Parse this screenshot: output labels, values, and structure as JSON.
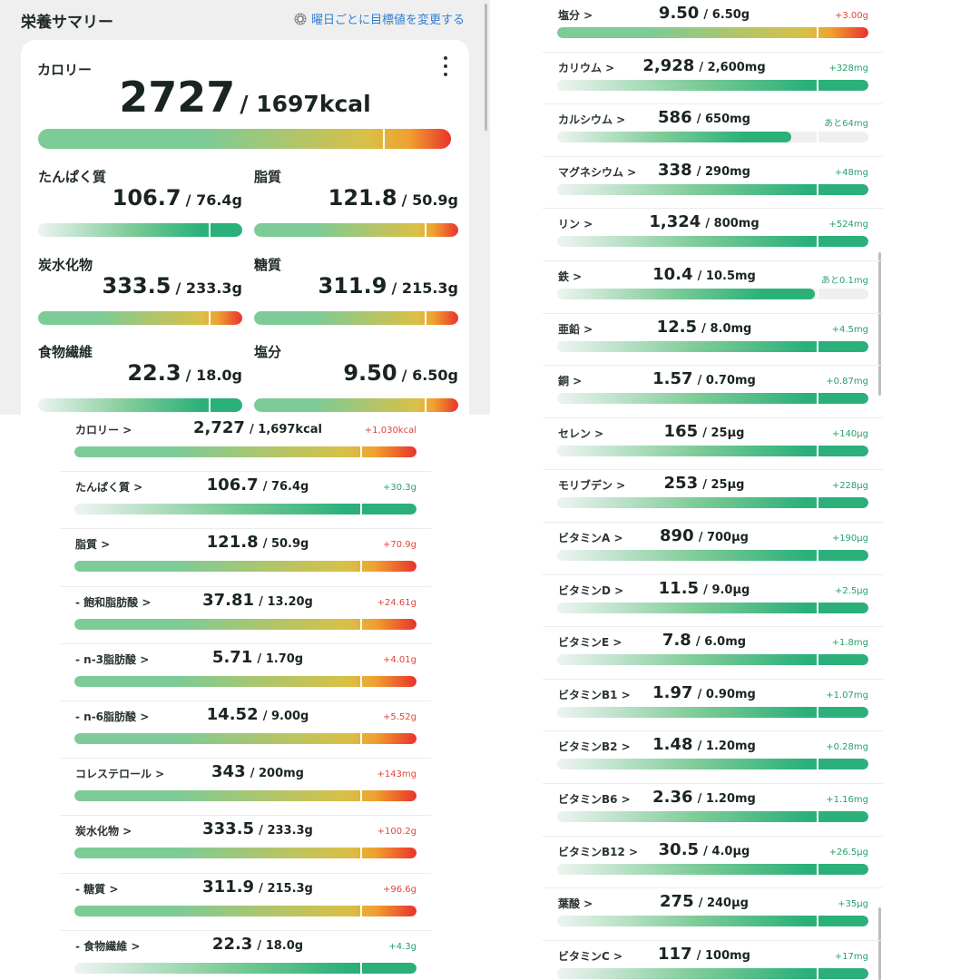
{
  "colors": {
    "green": "#2bb07a",
    "light_green": "#7dcb97",
    "yellow": "#d9c046",
    "orange": "#f0a02f",
    "red": "#e8332b",
    "over_text": "#e0443a",
    "ok_text": "#27a06a",
    "link_blue": "#2f7fd4"
  },
  "summary": {
    "title": "栄養サマリー",
    "link": "曜日ごとに目標値を変更する",
    "link_icon": "gear-icon",
    "menu_icon": "more-vertical-icon",
    "calorie": {
      "label": "カロリー",
      "value": "2727",
      "goal": "/ 1697kcal",
      "ratio": 1.607
    },
    "nutrients": [
      {
        "label": "たんぱく質",
        "value": "106.7",
        "goal": "/ 76.4g",
        "ratio": 1.397
      },
      {
        "label": "脂質",
        "value": "121.8",
        "goal": "/ 50.9g",
        "ratio": 2.393
      },
      {
        "label": "炭水化物",
        "value": "333.5",
        "goal": "/ 233.3g",
        "ratio": 1.43
      },
      {
        "label": "糖質",
        "value": "311.9",
        "goal": "/ 215.3g",
        "ratio": 1.449
      },
      {
        "label": "食物繊維",
        "value": "22.3",
        "goal": "/ 18.0g",
        "ratio": 1.239
      },
      {
        "label": "塩分",
        "value": "9.50",
        "goal": "/ 6.50g",
        "ratio": 1.462
      }
    ]
  },
  "list_left": [
    {
      "name": "カロリー >",
      "value": "2,727",
      "goal": "/ 1,697kcal",
      "diff": "+1,030kcal",
      "status": "over",
      "ratio": 1.607
    },
    {
      "name": "たんぱく質 >",
      "value": "106.7",
      "goal": "/ 76.4g",
      "diff": "+30.3g",
      "status": "ok",
      "ratio": 1.397
    },
    {
      "name": "脂質 >",
      "value": "121.8",
      "goal": "/ 50.9g",
      "diff": "+70.9g",
      "status": "over",
      "ratio": 2.393
    },
    {
      "name": "- 飽和脂肪酸 >",
      "value": "37.81",
      "goal": "/ 13.20g",
      "diff": "+24.61g",
      "status": "over",
      "ratio": 2.864
    },
    {
      "name": "- n-3脂肪酸 >",
      "value": "5.71",
      "goal": "/ 1.70g",
      "diff": "+4.01g",
      "status": "over",
      "ratio": 3.359
    },
    {
      "name": "- n-6脂肪酸 >",
      "value": "14.52",
      "goal": "/ 9.00g",
      "diff": "+5.52g",
      "status": "over",
      "ratio": 1.613
    },
    {
      "name": "コレステロール >",
      "value": "343",
      "goal": "/ 200mg",
      "diff": "+143mg",
      "status": "over",
      "ratio": 1.715
    },
    {
      "name": "炭水化物 >",
      "value": "333.5",
      "goal": "/ 233.3g",
      "diff": "+100.2g",
      "status": "over",
      "ratio": 1.43
    },
    {
      "name": "- 糖質 >",
      "value": "311.9",
      "goal": "/ 215.3g",
      "diff": "+96.6g",
      "status": "over",
      "ratio": 1.449
    },
    {
      "name": "- 食物繊維 >",
      "value": "22.3",
      "goal": "/ 18.0g",
      "diff": "+4.3g",
      "status": "ok",
      "ratio": 1.239
    }
  ],
  "list_right": [
    {
      "name": "塩分 >",
      "value": "9.50",
      "goal": "/ 6.50g",
      "diff": "+3.00g",
      "status": "over",
      "ratio": 1.462
    },
    {
      "name": "カリウム >",
      "value": "2,928",
      "goal": "/ 2,600mg",
      "diff": "+328mg",
      "status": "ok",
      "ratio": 1.126
    },
    {
      "name": "カルシウム >",
      "value": "586",
      "goal": "/ 650mg",
      "diff": "あと64mg",
      "status": "short",
      "ratio": 0.902
    },
    {
      "name": "マグネシウム >",
      "value": "338",
      "goal": "/ 290mg",
      "diff": "+48mg",
      "status": "ok",
      "ratio": 1.166
    },
    {
      "name": "リン >",
      "value": "1,324",
      "goal": "/ 800mg",
      "diff": "+524mg",
      "status": "ok",
      "ratio": 1.655
    },
    {
      "name": "鉄 >",
      "value": "10.4",
      "goal": "/ 10.5mg",
      "diff": "あと0.1mg",
      "status": "short",
      "ratio": 0.99
    },
    {
      "name": "亜鉛 >",
      "value": "12.5",
      "goal": "/ 8.0mg",
      "diff": "+4.5mg",
      "status": "ok",
      "ratio": 1.563
    },
    {
      "name": "銅 >",
      "value": "1.57",
      "goal": "/ 0.70mg",
      "diff": "+0.87mg",
      "status": "ok",
      "ratio": 2.243
    },
    {
      "name": "セレン >",
      "value": "165",
      "goal": "/ 25μg",
      "diff": "+140μg",
      "status": "ok",
      "ratio": 6.6
    },
    {
      "name": "モリブデン >",
      "value": "253",
      "goal": "/ 25μg",
      "diff": "+228μg",
      "status": "ok",
      "ratio": 10.12
    },
    {
      "name": "ビタミンA >",
      "value": "890",
      "goal": "/ 700μg",
      "diff": "+190μg",
      "status": "ok",
      "ratio": 1.271
    },
    {
      "name": "ビタミンD >",
      "value": "11.5",
      "goal": "/ 9.0μg",
      "diff": "+2.5μg",
      "status": "ok",
      "ratio": 1.278
    },
    {
      "name": "ビタミンE >",
      "value": "7.8",
      "goal": "/ 6.0mg",
      "diff": "+1.8mg",
      "status": "ok",
      "ratio": 1.3
    },
    {
      "name": "ビタミンB1 >",
      "value": "1.97",
      "goal": "/ 0.90mg",
      "diff": "+1.07mg",
      "status": "ok",
      "ratio": 2.189
    },
    {
      "name": "ビタミンB2 >",
      "value": "1.48",
      "goal": "/ 1.20mg",
      "diff": "+0.28mg",
      "status": "ok",
      "ratio": 1.233
    },
    {
      "name": "ビタミンB6 >",
      "value": "2.36",
      "goal": "/ 1.20mg",
      "diff": "+1.16mg",
      "status": "ok",
      "ratio": 1.967
    },
    {
      "name": "ビタミンB12 >",
      "value": "30.5",
      "goal": "/ 4.0μg",
      "diff": "+26.5μg",
      "status": "ok",
      "ratio": 7.625
    },
    {
      "name": "葉酸 >",
      "value": "275",
      "goal": "/ 240μg",
      "diff": "+35μg",
      "status": "ok",
      "ratio": 1.146
    },
    {
      "name": "ビタミンC >",
      "value": "117",
      "goal": "/ 100mg",
      "diff": "+17mg",
      "status": "ok",
      "ratio": 1.17
    }
  ]
}
